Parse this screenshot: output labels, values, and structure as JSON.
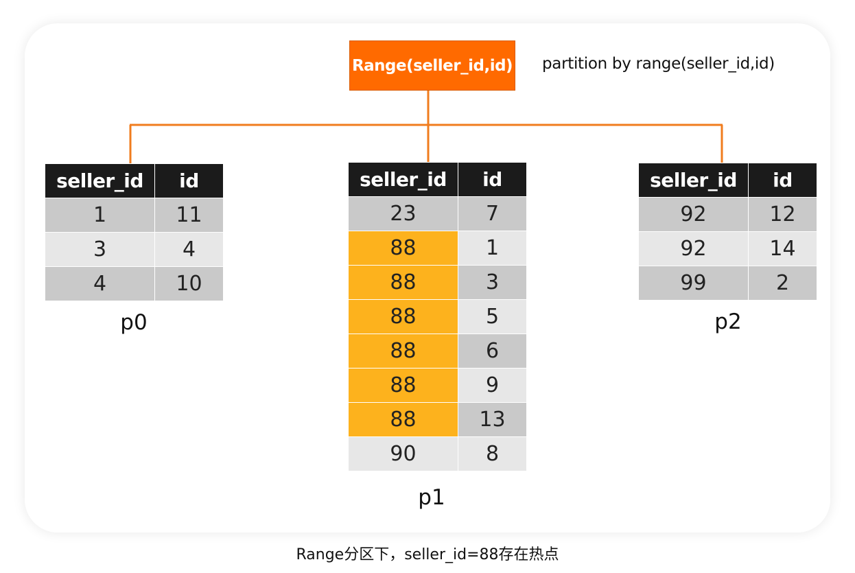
{
  "root": {
    "label": "Range(seller_id,id)",
    "description": "partition by range(seller_id,id)"
  },
  "colors": {
    "root_fill": "#ff6a00",
    "connector": "#f07c1e",
    "header_fill": "#1b1b1b",
    "row_dark": "#c9c9c9",
    "row_light": "#e7e7e7",
    "hotspot": "#fdb21d"
  },
  "partitions": [
    {
      "label": "p0",
      "headers": [
        "seller_id",
        "id"
      ],
      "rows": [
        {
          "seller_id": "1",
          "id": "11",
          "hot": false
        },
        {
          "seller_id": "3",
          "id": "4",
          "hot": false
        },
        {
          "seller_id": "4",
          "id": "10",
          "hot": false
        }
      ]
    },
    {
      "label": "p1",
      "headers": [
        "seller_id",
        "id"
      ],
      "rows": [
        {
          "seller_id": "23",
          "id": "7",
          "hot": false
        },
        {
          "seller_id": "88",
          "id": "1",
          "hot": true
        },
        {
          "seller_id": "88",
          "id": "3",
          "hot": true
        },
        {
          "seller_id": "88",
          "id": "5",
          "hot": true
        },
        {
          "seller_id": "88",
          "id": "6",
          "hot": true
        },
        {
          "seller_id": "88",
          "id": "9",
          "hot": true
        },
        {
          "seller_id": "88",
          "id": "13",
          "hot": true
        },
        {
          "seller_id": "90",
          "id": "8",
          "hot": false
        }
      ]
    },
    {
      "label": "p2",
      "headers": [
        "seller_id",
        "id"
      ],
      "rows": [
        {
          "seller_id": "92",
          "id": "12",
          "hot": false
        },
        {
          "seller_id": "92",
          "id": "14",
          "hot": false
        },
        {
          "seller_id": "99",
          "id": "2",
          "hot": false
        }
      ]
    }
  ],
  "caption": "Range分区下，seller_id=88存在热点"
}
